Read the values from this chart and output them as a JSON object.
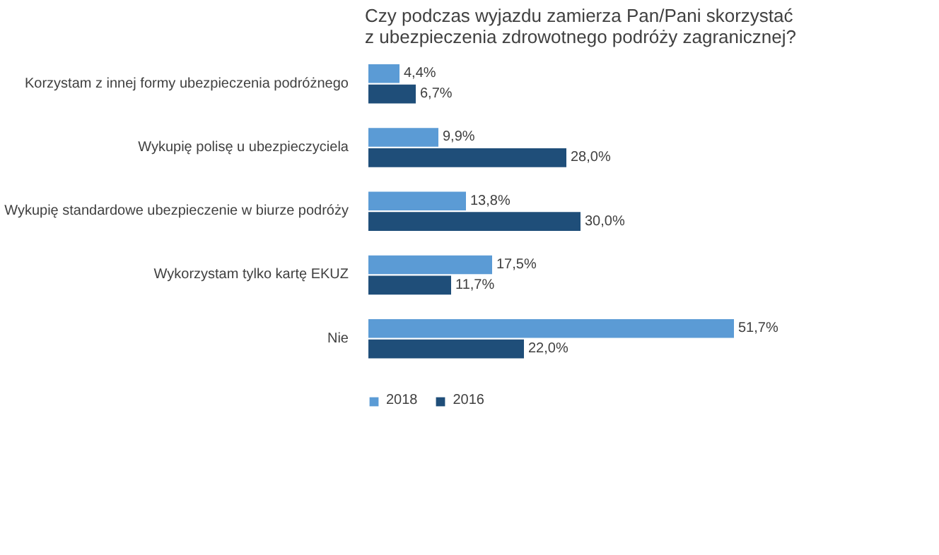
{
  "chart_data": {
    "type": "bar",
    "orientation": "horizontal",
    "title": "Czy podczas wyjazdu zamierza Pan/Pani skorzystać z ubezpieczenia zdrowotnego podróży zagranicznej?",
    "categories": [
      "Korzystam z innej formy ubezpieczenia podróżnego",
      "Wykupię polisę u ubezpieczyciela",
      "Wykupię standardowe ubezpieczenie w biurze podróży",
      "Wykorzystam tylko kartę EKUZ",
      "Nie"
    ],
    "series": [
      {
        "name": "2018",
        "color": "#5b9bd5",
        "values": [
          4.4,
          9.9,
          13.8,
          17.5,
          51.7
        ],
        "value_labels": [
          "4,4%",
          "9,9%",
          "13,8%",
          "17,5%",
          "51,7%"
        ]
      },
      {
        "name": "2016",
        "color": "#1f4e79",
        "values": [
          6.7,
          28.0,
          30.0,
          11.7,
          22.0
        ],
        "value_labels": [
          "6,7%",
          "28,0%",
          "30,0%",
          "11,7%",
          "22,0%"
        ]
      }
    ],
    "legend": "bottom",
    "grid": false,
    "tick_labels": "y"
  }
}
